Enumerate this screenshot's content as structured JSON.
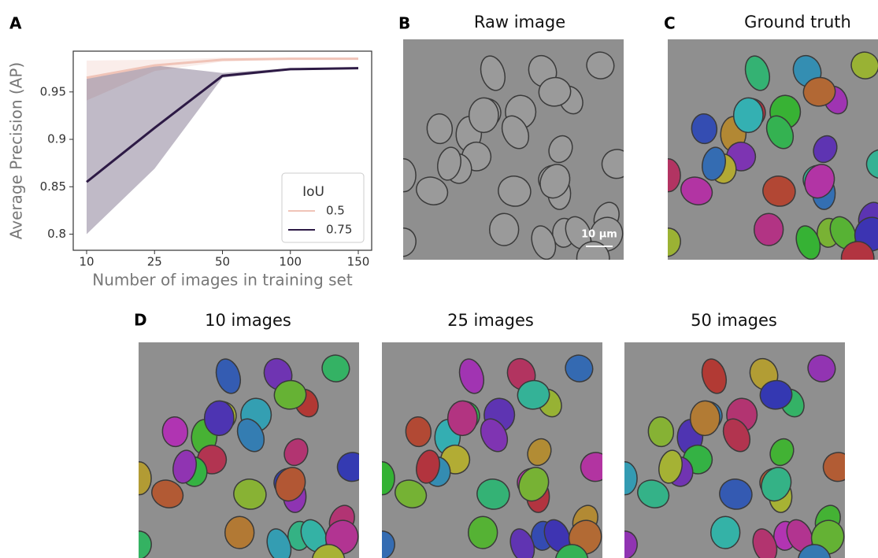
{
  "chart_data": {
    "type": "line",
    "panel_label": "A",
    "x_label": "Number of images in training set",
    "y_label": "Average Precision (AP)",
    "categories": [
      "10",
      "25",
      "50",
      "100",
      "150"
    ],
    "ylim": [
      0.783,
      0.993
    ],
    "yticks": [
      0.8,
      0.85,
      0.9,
      0.95
    ],
    "legend_title": "IoU",
    "legend_position": "lower right",
    "series": [
      {
        "name": "0.5",
        "color": "#f0c4b8",
        "values": [
          0.965,
          0.978,
          0.984,
          0.985,
          0.985
        ],
        "lower": [
          0.941,
          0.972,
          0.982,
          0.984,
          0.984
        ],
        "upper": [
          0.983,
          0.984,
          0.986,
          0.986,
          0.986
        ]
      },
      {
        "name": "0.75",
        "color": "#2d1a45",
        "values": [
          0.855,
          0.912,
          0.967,
          0.974,
          0.975
        ],
        "lower": [
          0.8,
          0.869,
          0.965,
          0.973,
          0.974
        ],
        "upper": [
          0.964,
          0.978,
          0.97,
          0.975,
          0.976
        ]
      }
    ]
  },
  "panels": [
    {
      "label": "B",
      "title": "Raw image",
      "scale_bar": "10 μm"
    },
    {
      "label": "C",
      "title": "Ground truth"
    },
    {
      "label": "D",
      "titles": [
        "10 images",
        "25 images",
        "50 images"
      ]
    }
  ]
}
